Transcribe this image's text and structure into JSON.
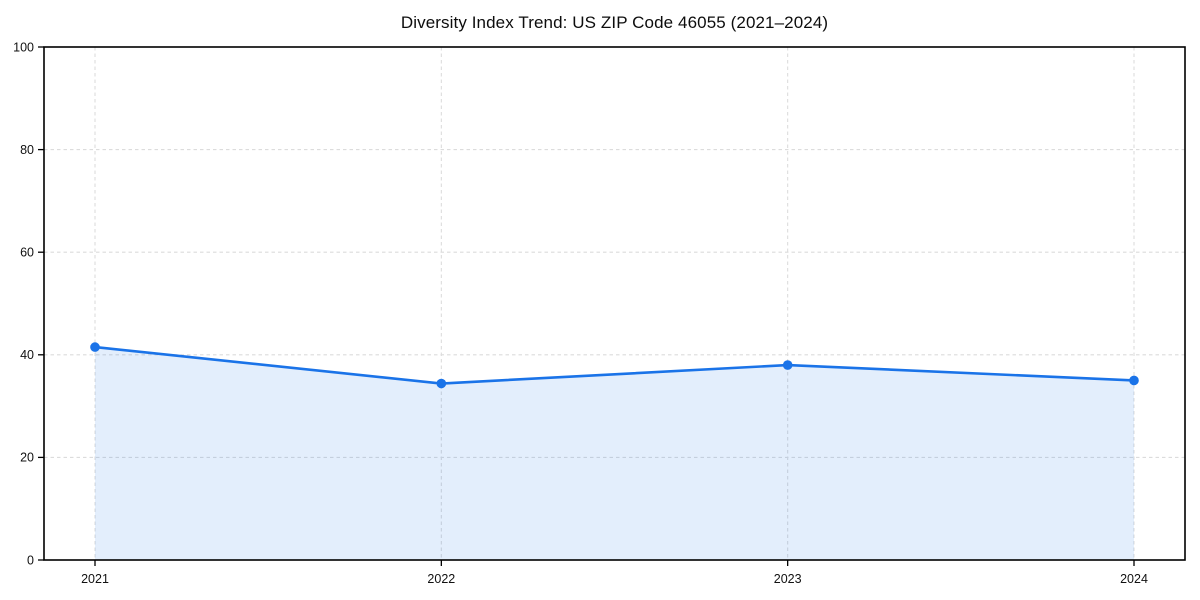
{
  "chart_data": {
    "type": "line",
    "title": "Diversity Index Trend: US ZIP Code 46055 (2021–2024)",
    "categories": [
      "2021",
      "2022",
      "2023",
      "2024"
    ],
    "series": [
      {
        "name": "Diversity Index",
        "values": [
          41.5,
          34.4,
          38.0,
          35.0
        ]
      }
    ],
    "xlabel": "",
    "ylabel": "",
    "ylim": [
      0,
      100
    ],
    "yticks": [
      0,
      20,
      40,
      60,
      80,
      100
    ],
    "grid": true,
    "grid_style": "dashed",
    "legend": "none",
    "area_fill": true,
    "colors": {
      "line": "#1a73e8",
      "fill": "rgba(26,115,232,0.12)",
      "grid": "#dcdcdc",
      "axis": "#000000",
      "title_text": "#0d0d0d",
      "tick_text": "#111111",
      "background": "#ffffff"
    }
  }
}
